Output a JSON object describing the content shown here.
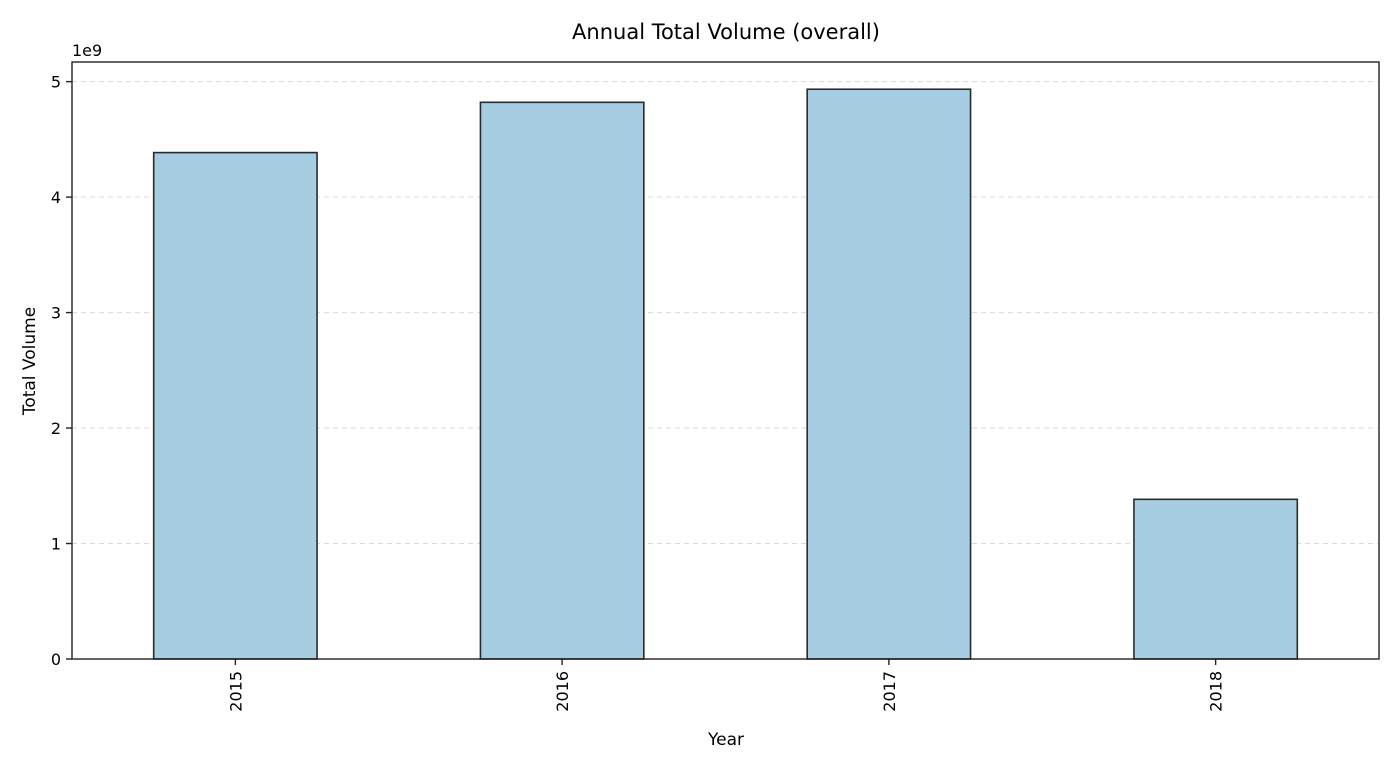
{
  "chart_data": {
    "type": "bar",
    "title": "Annual Total Volume (overall)",
    "xlabel": "Year",
    "ylabel": "Total Volume",
    "y_scale_label": "1e9",
    "categories": [
      "2015",
      "2016",
      "2017",
      "2018"
    ],
    "values": [
      4385468992.98,
      4820890468.39,
      4934305699.43,
      1382738217.04
    ],
    "ylim": [
      0,
      5170000000
    ],
    "yticks": [
      0,
      1000000000,
      2000000000,
      3000000000,
      4000000000,
      5000000000
    ],
    "ytick_labels": [
      "0",
      "1",
      "2",
      "3",
      "4",
      "5"
    ],
    "grid": "y-dashed",
    "bar_color": "#a6cde1",
    "edge_color": "#2b2b2b"
  }
}
